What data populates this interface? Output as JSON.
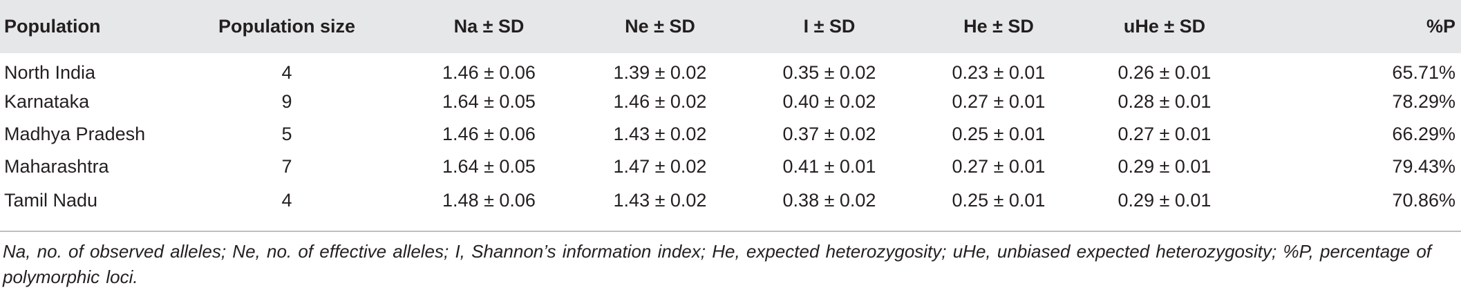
{
  "table": {
    "headers": [
      "Population",
      "Population size",
      "Na ± SD",
      "Ne ± SD",
      "I ± SD",
      "He ± SD",
      "uHe ± SD",
      "%P"
    ],
    "rows": [
      [
        "North India",
        "4",
        "1.46 ± 0.06",
        "1.39 ± 0.02",
        "0.35 ± 0.02",
        "0.23 ± 0.01",
        "0.26 ± 0.01",
        "65.71%"
      ],
      [
        "Karnataka",
        "9",
        "1.64 ± 0.05",
        "1.46 ± 0.02",
        "0.40 ± 0.02",
        "0.27 ± 0.01",
        "0.28 ± 0.01",
        "78.29%"
      ],
      [
        "Madhya Pradesh",
        "5",
        "1.46 ± 0.06",
        "1.43 ± 0.02",
        "0.37 ± 0.02",
        "0.25 ± 0.01",
        "0.27 ± 0.01",
        "66.29%"
      ],
      [
        "Maharashtra",
        "7",
        "1.64 ± 0.05",
        "1.47 ± 0.02",
        "0.41 ± 0.01",
        "0.27 ± 0.01",
        "0.29 ± 0.01",
        "79.43%"
      ],
      [
        "Tamil Nadu",
        "4",
        "1.48 ± 0.06",
        "1.43 ± 0.02",
        "0.38 ± 0.02",
        "0.25 ± 0.01",
        "0.29 ± 0.01",
        "70.86%"
      ]
    ]
  },
  "footnote": "Na, no. of observed alleles; Ne, no. of effective alleles; I, Shannon’s information index; He, expected heterozygosity; uHe, unbiased expected heterozygosity; %P, percentage of polymorphic loci."
}
